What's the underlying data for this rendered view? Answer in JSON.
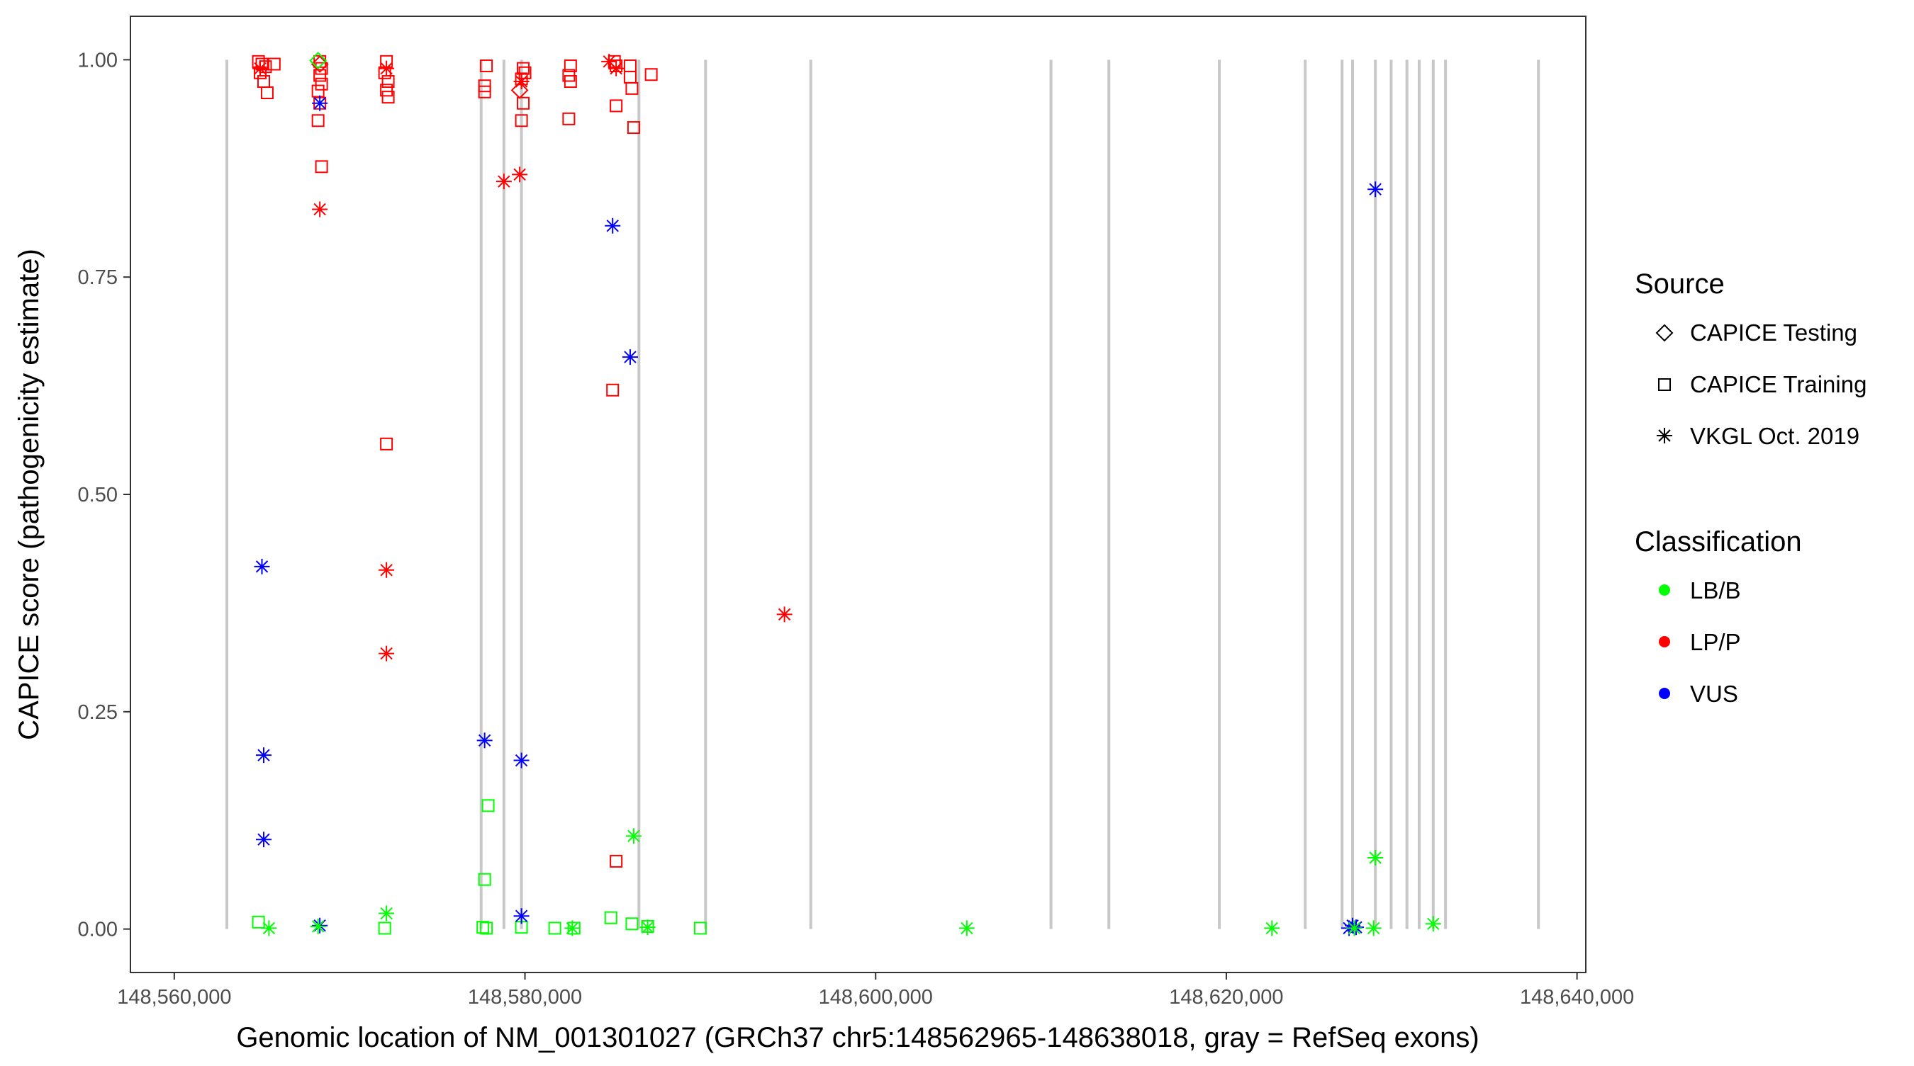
{
  "chart_data": {
    "type": "scatter",
    "xlabel": "Genomic location of NM_001301027 (GRCh37 chr5:148562965-148638018, gray = RefSeq exons)",
    "ylabel": "CAPICE score (pathogenicity estimate)",
    "xlim": [
      148557500,
      148640500
    ],
    "ylim": [
      -0.05,
      1.05
    ],
    "x_ticks": [
      148560000,
      148580000,
      148600000,
      148620000,
      148640000
    ],
    "x_tick_labels": [
      "148,560,000",
      "148,580,000",
      "148,600,000",
      "148,620,000",
      "148,640,000"
    ],
    "y_ticks": [
      0,
      0.25,
      0.5,
      0.75,
      1
    ],
    "y_tick_labels": [
      "0.00",
      "0.25",
      "0.50",
      "0.75",
      "1.00"
    ],
    "grid": false,
    "exon_lines_color": "#c8c8c8",
    "exons": [
      148563000,
      148577500,
      148578800,
      148579800,
      148586500,
      148590300,
      148596300,
      148610000,
      148613300,
      148619600,
      148624500,
      148626600,
      148627200,
      148628500,
      148629400,
      148630300,
      148631000,
      148631800,
      148632500,
      148637800
    ],
    "legend_source": {
      "title": "Source",
      "items": [
        {
          "label": "CAPICE Testing",
          "shape": "diamond"
        },
        {
          "label": "CAPICE Training",
          "shape": "square"
        },
        {
          "label": "VKGL Oct. 2019",
          "shape": "asterisk"
        }
      ]
    },
    "legend_classification": {
      "title": "Classification",
      "items": [
        {
          "label": "LB/B",
          "color": "#00ff00"
        },
        {
          "label": "LP/P",
          "color": "#ff0000"
        },
        {
          "label": "VUS",
          "color": "#0000ff"
        }
      ]
    },
    "series": [
      {
        "name": "LP/P CAPICE Training",
        "shape": "square",
        "color": "#ff0000",
        "points": [
          [
            148564800,
            0.998
          ],
          [
            148565000,
            0.995
          ],
          [
            148565200,
            0.992
          ],
          [
            148564900,
            0.985
          ],
          [
            148565100,
            0.975
          ],
          [
            148565300,
            0.962
          ],
          [
            148565700,
            0.995
          ],
          [
            148568300,
            0.998
          ],
          [
            148568400,
            0.99
          ],
          [
            148568300,
            0.982
          ],
          [
            148568400,
            0.972
          ],
          [
            148568200,
            0.964
          ],
          [
            148568300,
            0.95
          ],
          [
            148568200,
            0.93
          ],
          [
            148568400,
            0.877
          ],
          [
            148572100,
            0.998
          ],
          [
            148572000,
            0.985
          ],
          [
            148572200,
            0.975
          ],
          [
            148572100,
            0.965
          ],
          [
            148572200,
            0.957
          ],
          [
            148572100,
            0.558
          ],
          [
            148577800,
            0.993
          ],
          [
            148577700,
            0.97
          ],
          [
            148577700,
            0.963
          ],
          [
            148579900,
            0.99
          ],
          [
            148580000,
            0.985
          ],
          [
            148579800,
            0.978
          ],
          [
            148579900,
            0.95
          ],
          [
            148579800,
            0.93
          ],
          [
            148582600,
            0.993
          ],
          [
            148582500,
            0.982
          ],
          [
            148582600,
            0.975
          ],
          [
            148582500,
            0.932
          ],
          [
            148585100,
            0.998
          ],
          [
            148585200,
            0.993
          ],
          [
            148586000,
            0.993
          ],
          [
            148586000,
            0.98
          ],
          [
            148586100,
            0.967
          ],
          [
            148587200,
            0.983
          ],
          [
            148585200,
            0.947
          ],
          [
            148586200,
            0.922
          ],
          [
            148585000,
            0.62
          ],
          [
            148585200,
            0.078
          ]
        ]
      },
      {
        "name": "LB/B CAPICE Training",
        "shape": "square",
        "color": "#00ff00",
        "points": [
          [
            148564800,
            0.008
          ],
          [
            148577900,
            0.142
          ],
          [
            148577700,
            0.057
          ],
          [
            148577600,
            0.002
          ],
          [
            148577800,
            0.001
          ],
          [
            148579800,
            0.002
          ],
          [
            148581700,
            0.001
          ],
          [
            148582800,
            0.001
          ],
          [
            148584900,
            0.013
          ],
          [
            148586100,
            0.006
          ],
          [
            148587000,
            0.003
          ],
          [
            148590000,
            0.001
          ],
          [
            148572000,
            0.001
          ]
        ]
      },
      {
        "name": "LP/P CAPICE Testing",
        "shape": "diamond",
        "color": "#ff0000",
        "points": [
          [
            148568300,
            0.995
          ],
          [
            148579700,
            0.965
          ]
        ]
      },
      {
        "name": "LB/B CAPICE Testing",
        "shape": "diamond",
        "color": "#00ff00",
        "points": [
          [
            148568200,
            0.999
          ]
        ]
      },
      {
        "name": "LP/P VKGL Oct. 2019",
        "shape": "asterisk",
        "color": "#ff0000",
        "points": [
          [
            148564900,
            0.99
          ],
          [
            148568300,
            0.828
          ],
          [
            148572100,
            0.99
          ],
          [
            148572100,
            0.413
          ],
          [
            148572100,
            0.317
          ],
          [
            148578800,
            0.86
          ],
          [
            148579700,
            0.868
          ],
          [
            148579800,
            0.975
          ],
          [
            148584800,
            0.998
          ],
          [
            148585200,
            0.99
          ],
          [
            148594800,
            0.362
          ]
        ]
      },
      {
        "name": "VUS VKGL Oct. 2019",
        "shape": "asterisk",
        "color": "#0000ff",
        "points": [
          [
            148568300,
            0.95
          ],
          [
            148568300,
            0.004
          ],
          [
            148565000,
            0.417
          ],
          [
            148565100,
            0.2
          ],
          [
            148565100,
            0.103
          ],
          [
            148577700,
            0.217
          ],
          [
            148579800,
            0.194
          ],
          [
            148579800,
            0.015
          ],
          [
            148585000,
            0.809
          ],
          [
            148586000,
            0.658
          ],
          [
            148627200,
            0.004
          ],
          [
            148627400,
            0.002
          ],
          [
            148627000,
            0.001
          ],
          [
            148628500,
            0.851
          ]
        ]
      },
      {
        "name": "LB/B VKGL Oct. 2019",
        "shape": "asterisk",
        "color": "#00ff00",
        "points": [
          [
            148565400,
            0.001
          ],
          [
            148568200,
            0.003
          ],
          [
            148572100,
            0.018
          ],
          [
            148582700,
            0.001
          ],
          [
            148586200,
            0.107
          ],
          [
            148587000,
            0.002
          ],
          [
            148605200,
            0.001
          ],
          [
            148622600,
            0.001
          ],
          [
            148628400,
            0.001
          ],
          [
            148628500,
            0.082
          ],
          [
            148631800,
            0.006
          ],
          [
            148627300,
            0.001
          ]
        ]
      }
    ]
  }
}
